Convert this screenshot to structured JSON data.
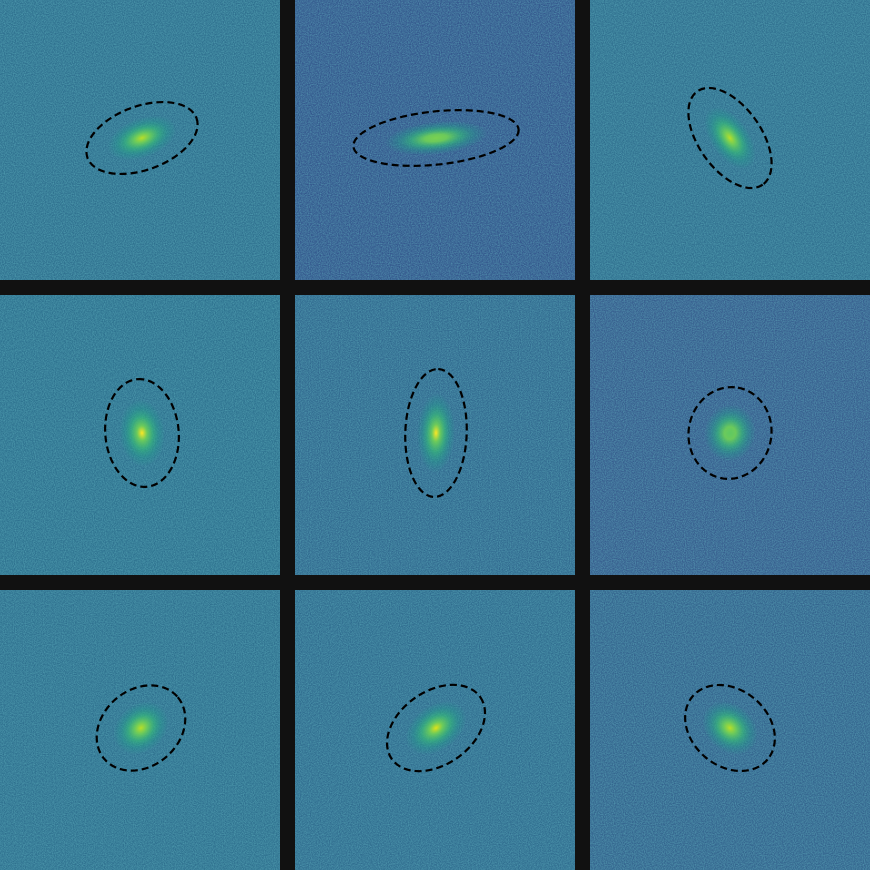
{
  "figure": {
    "separator_color": "#111111",
    "colormap": "viridis",
    "overlay_style": "dashed ellipse",
    "overlay_color": "#000000"
  },
  "panels": [
    {
      "name": "galaxy-panel-1",
      "bg": "#2e6f8e",
      "ellipse_angle_deg": 20,
      "axis_ratio": 0.55,
      "peak_color": "#b8de29"
    },
    {
      "name": "galaxy-panel-2",
      "bg": "#33568c",
      "ellipse_angle_deg": 6,
      "axis_ratio": 0.32,
      "peak_color": "#7ad151"
    },
    {
      "name": "galaxy-panel-3",
      "bg": "#2f6e8e",
      "ellipse_angle_deg": -55,
      "axis_ratio": 0.55,
      "peak_color": "#b8de29"
    },
    {
      "name": "galaxy-panel-4",
      "bg": "#2d708e",
      "ellipse_angle_deg": 95,
      "axis_ratio": 0.68,
      "peak_color": "#fde725"
    },
    {
      "name": "galaxy-panel-5",
      "bg": "#30688e",
      "ellipse_angle_deg": 88,
      "axis_ratio": 0.48,
      "peak_color": "#fde725"
    },
    {
      "name": "galaxy-panel-6",
      "bg": "#365c8d",
      "ellipse_angle_deg": 80,
      "axis_ratio": 0.9,
      "peak_color": "#5ec962"
    },
    {
      "name": "galaxy-panel-7",
      "bg": "#2e6f8e",
      "ellipse_angle_deg": 40,
      "axis_ratio": 0.8,
      "peak_color": "#b8de29"
    },
    {
      "name": "galaxy-panel-8",
      "bg": "#2f6b8e",
      "ellipse_angle_deg": 35,
      "axis_ratio": 0.68,
      "peak_color": "#dfe318"
    },
    {
      "name": "galaxy-panel-9",
      "bg": "#33638d",
      "ellipse_angle_deg": -40,
      "axis_ratio": 0.78,
      "peak_color": "#b8de29"
    }
  ]
}
